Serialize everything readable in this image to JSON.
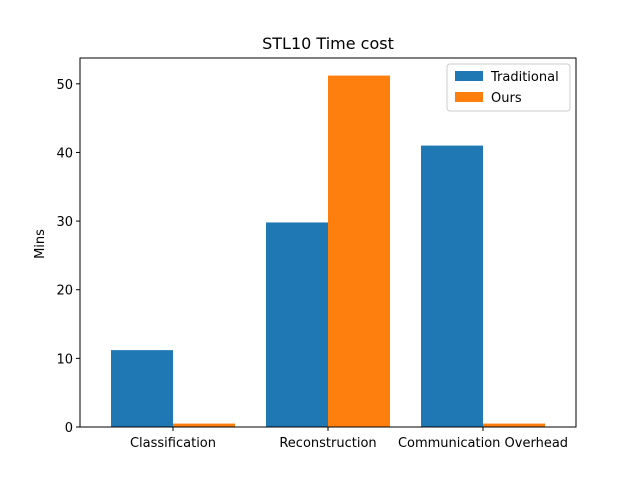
{
  "chart_data": {
    "type": "bar",
    "title": "STL10 Time cost",
    "xlabel": "",
    "ylabel": "Mins",
    "categories": [
      "Classification",
      "Reconstruction",
      "Communication Overhead"
    ],
    "series": [
      {
        "name": "Traditional",
        "values": [
          11.2,
          29.8,
          41.0
        ],
        "color": "#1f77b4"
      },
      {
        "name": "Ours",
        "values": [
          0.5,
          51.2,
          0.5
        ],
        "color": "#ff7f0e"
      }
    ],
    "ylim": [
      0,
      53.76
    ],
    "yticks": [
      0,
      10,
      20,
      30,
      40,
      50
    ],
    "grid": false,
    "legend_position": "top-right"
  }
}
